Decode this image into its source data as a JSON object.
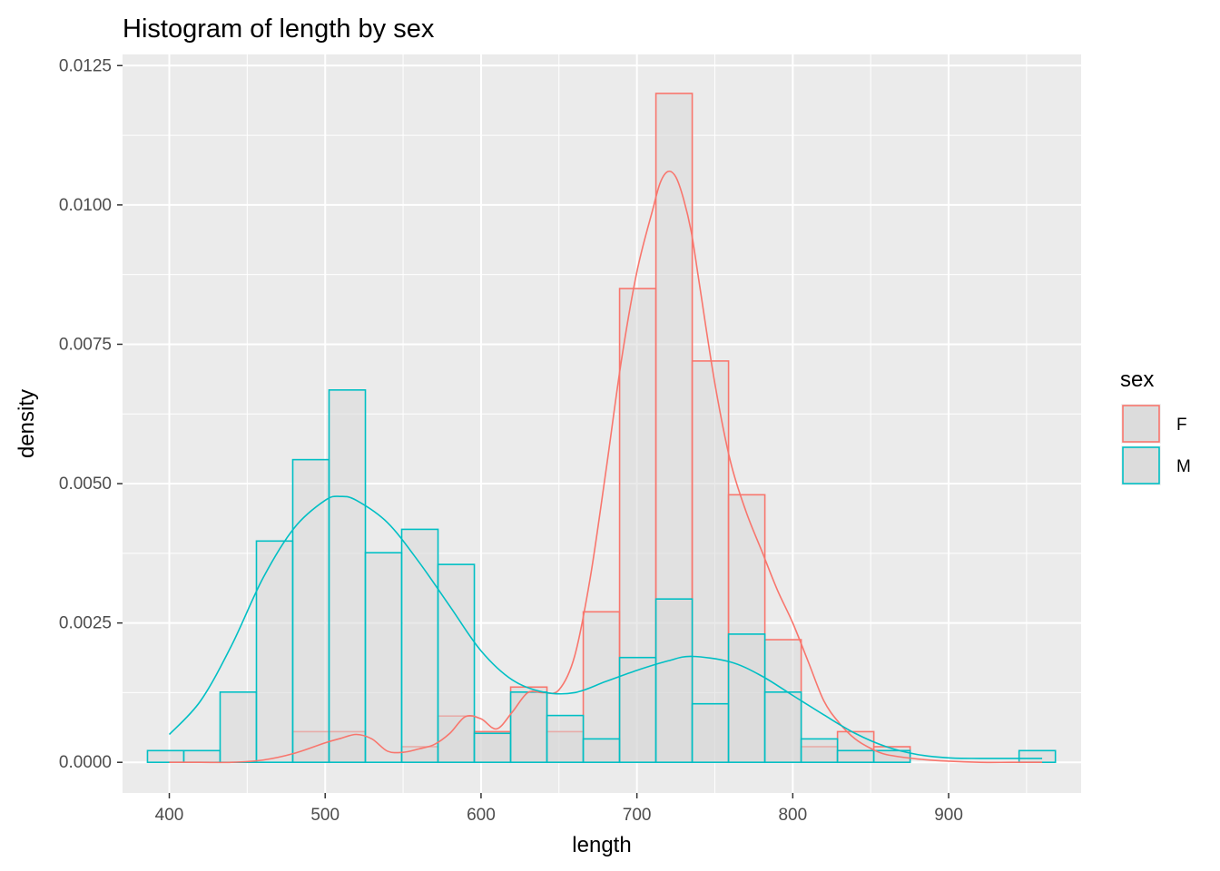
{
  "chart_data": {
    "type": "histogram",
    "title": "Histogram of length by sex",
    "xlabel": "length",
    "ylabel": "density",
    "xlim": [
      370,
      985
    ],
    "ylim": [
      -0.00055,
      0.0127
    ],
    "x_ticks": [
      400,
      500,
      600,
      700,
      800,
      900
    ],
    "x_tick_labels": [
      "400",
      "500",
      "600",
      "700",
      "800",
      "900"
    ],
    "y_ticks": [
      0,
      0.0025,
      0.005,
      0.0075,
      0.01,
      0.0125
    ],
    "y_tick_labels": [
      "0.0000",
      "0.0025",
      "0.0050",
      "0.0075",
      "0.0100",
      "0.0125"
    ],
    "grid": true,
    "legend": {
      "title": "sex",
      "position": "right"
    },
    "bin_edges": [
      386,
      409.3,
      432.6,
      455.9,
      479.2,
      502.5,
      525.8,
      549.1,
      572.4,
      595.7,
      619,
      642.3,
      665.6,
      688.9,
      712.2,
      735.5,
      758.8,
      782.1,
      805.4,
      828.7,
      852,
      875.3,
      898.6,
      921.9,
      945.2,
      968.5
    ],
    "colors": {
      "F": "#f8766d",
      "M": "#00bfc4",
      "bar_fill": "#d9d9d9",
      "panel": "#ebebeb",
      "grid": "#ffffff"
    },
    "series": [
      {
        "name": "F",
        "color": "#f8766d",
        "density": [
          0,
          0,
          0,
          0,
          0.00055,
          0.00055,
          0,
          0.00028,
          0.00083,
          0.00055,
          0.00135,
          0.00055,
          0.0027,
          0.0085,
          0.012,
          0.0072,
          0.0048,
          0.0022,
          0.00028,
          0.00055,
          0.00028,
          0,
          0,
          0,
          0
        ],
        "kde_x": [
          400,
          420,
          440,
          460,
          480,
          500,
          510,
          520,
          530,
          540,
          550,
          560,
          570,
          580,
          590,
          600,
          610,
          620,
          630,
          640,
          650,
          660,
          670,
          680,
          690,
          700,
          710,
          715,
          720,
          725,
          730,
          735,
          740,
          750,
          760,
          770,
          780,
          790,
          800,
          810,
          820,
          830,
          840,
          850,
          860,
          880,
          900,
          920,
          940,
          960
        ],
        "kde_y": [
          0,
          0,
          0,
          4e-05,
          0.00016,
          0.00035,
          0.00043,
          0.0005,
          0.00042,
          0.0002,
          0.00018,
          0.00024,
          0.00032,
          0.00052,
          0.00082,
          0.00078,
          0.0006,
          0.0009,
          0.00125,
          0.00125,
          0.0013,
          0.0019,
          0.0033,
          0.0052,
          0.0072,
          0.0088,
          0.0099,
          0.0104,
          0.0106,
          0.0105,
          0.0101,
          0.0095,
          0.0086,
          0.0068,
          0.0054,
          0.0045,
          0.0038,
          0.0031,
          0.0025,
          0.0018,
          0.0011,
          0.0007,
          0.00042,
          0.00025,
          0.00014,
          6e-05,
          2e-05,
          0,
          0,
          0
        ]
      },
      {
        "name": "M",
        "color": "#00bfc4",
        "density": [
          0.00021,
          0.00021,
          0.00126,
          0.00397,
          0.00543,
          0.00668,
          0.00376,
          0.00418,
          0.00355,
          0.00052,
          0.00126,
          0.00084,
          0.00042,
          0.00188,
          0.00293,
          0.00105,
          0.0023,
          0.00126,
          0.00042,
          0.00021,
          0.00021,
          0,
          0,
          0,
          0.00021
        ],
        "kde_x": [
          400,
          420,
          440,
          460,
          480,
          500,
          510,
          520,
          540,
          560,
          580,
          600,
          620,
          640,
          660,
          680,
          700,
          720,
          735,
          760,
          780,
          800,
          820,
          840,
          860,
          880,
          900,
          920,
          940,
          960
        ],
        "kde_y": [
          0.0005,
          0.0011,
          0.0021,
          0.0033,
          0.0042,
          0.0047,
          0.00477,
          0.0047,
          0.0043,
          0.0036,
          0.0028,
          0.002,
          0.00148,
          0.00126,
          0.00125,
          0.00145,
          0.00165,
          0.00182,
          0.0019,
          0.0018,
          0.00155,
          0.0012,
          0.00085,
          0.00052,
          0.00028,
          0.00014,
          8e-05,
          7e-05,
          7e-05,
          7e-05
        ]
      }
    ]
  }
}
